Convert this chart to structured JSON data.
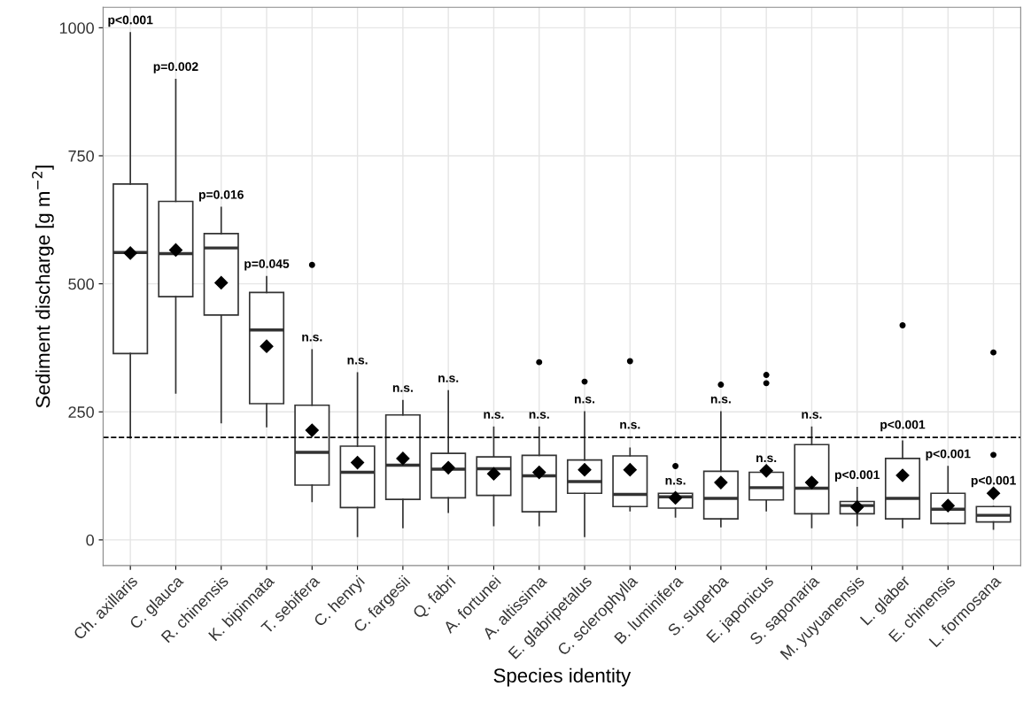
{
  "chart_data": {
    "type": "box",
    "xlabel": "Species identity",
    "ylabel": "Sediment discharge [g m$^{−2}$]",
    "categories": [
      "Ch. axillaris",
      "C. glauca",
      "R. chinensis",
      "K. bipinnata",
      "T. sebifera",
      "C. henryi",
      "C. fargesii",
      "Q. fabri",
      "A. fortunei",
      "A. altissima",
      "E. glabripetalus",
      "C. sclerophylla",
      "B. luminifera",
      "S. superba",
      "E. japonicus",
      "S. saponaria",
      "M. yuyuanensis",
      "L. glaber",
      "E. chinensis",
      "L. formosana"
    ],
    "boxes": [
      {
        "low": 199,
        "q1": 364,
        "median": 561,
        "q3": 695,
        "high": 990,
        "mean": 560
      },
      {
        "low": 287,
        "q1": 475,
        "median": 559,
        "q3": 661,
        "high": 899,
        "mean": 566
      },
      {
        "low": 229,
        "q1": 439,
        "median": 570,
        "q3": 598,
        "high": 649,
        "mean": 502
      },
      {
        "low": 221,
        "q1": 266,
        "median": 410,
        "q3": 483,
        "high": 514,
        "mean": 378
      },
      {
        "low": 75,
        "q1": 107,
        "median": 171,
        "q3": 263,
        "high": 371,
        "mean": 214,
        "outliers": [
          537
        ]
      },
      {
        "low": 7,
        "q1": 63,
        "median": 132,
        "q3": 183,
        "high": 326,
        "mean": 151
      },
      {
        "low": 24,
        "q1": 79,
        "median": 146,
        "q3": 244,
        "high": 272,
        "mean": 159
      },
      {
        "low": 54,
        "q1": 82,
        "median": 138,
        "q3": 169,
        "high": 291,
        "mean": 141
      },
      {
        "low": 28,
        "q1": 87,
        "median": 139,
        "q3": 162,
        "high": 220,
        "mean": 129
      },
      {
        "low": 28,
        "q1": 55,
        "median": 125,
        "q3": 165,
        "high": 220,
        "mean": 132,
        "outliers": [
          347
        ]
      },
      {
        "low": 7,
        "q1": 91,
        "median": 114,
        "q3": 156,
        "high": 250,
        "mean": 137,
        "outliers": [
          309
        ]
      },
      {
        "low": 57,
        "q1": 65,
        "median": 89,
        "q3": 164,
        "high": 179,
        "mean": 137,
        "outliers": [
          349
        ]
      },
      {
        "low": 45,
        "q1": 62,
        "median": 84,
        "q3": 91,
        "high": 91,
        "mean": 82,
        "outliers": [
          144
        ]
      },
      {
        "low": 26,
        "q1": 41,
        "median": 81,
        "q3": 134,
        "high": 250,
        "mean": 112,
        "outliers": [
          303
        ]
      },
      {
        "low": 57,
        "q1": 78,
        "median": 102,
        "q3": 132,
        "high": 132,
        "mean": 135,
        "outliers": [
          306,
          322
        ]
      },
      {
        "low": 24,
        "q1": 51,
        "median": 101,
        "q3": 186,
        "high": 220,
        "mean": 112
      },
      {
        "low": 28,
        "q1": 51,
        "median": 67,
        "q3": 75,
        "high": 102,
        "mean": 64
      },
      {
        "low": 24,
        "q1": 41,
        "median": 81,
        "q3": 159,
        "high": 193,
        "mean": 126,
        "outliers": [
          419
        ]
      },
      {
        "low": 32,
        "q1": 32,
        "median": 60,
        "q3": 91,
        "high": 143,
        "mean": 67
      },
      {
        "low": 21,
        "q1": 35,
        "median": 48,
        "q3": 65,
        "high": 65,
        "mean": 91,
        "outliers": [
          166,
          366
        ]
      }
    ],
    "ylim": [
      -50,
      1040
    ],
    "yticks": [
      0,
      250,
      500,
      750,
      1000
    ],
    "grid": true,
    "ref_lines": [
      {
        "axis": "y",
        "value": 200,
        "line_style": "dashed",
        "color": "#000000"
      }
    ],
    "annotations": [
      "p<0.001",
      "p=0.002",
      "p=0.016",
      "p=0.045",
      "n.s.",
      "n.s.",
      "n.s.",
      "n.s.",
      "n.s.",
      "n.s.",
      "n.s.",
      "n.s.",
      "n.s.",
      "n.s.",
      "n.s.",
      "n.s.",
      "p<0.001",
      "p<0.001",
      "p<0.001",
      "p<0.001"
    ]
  }
}
